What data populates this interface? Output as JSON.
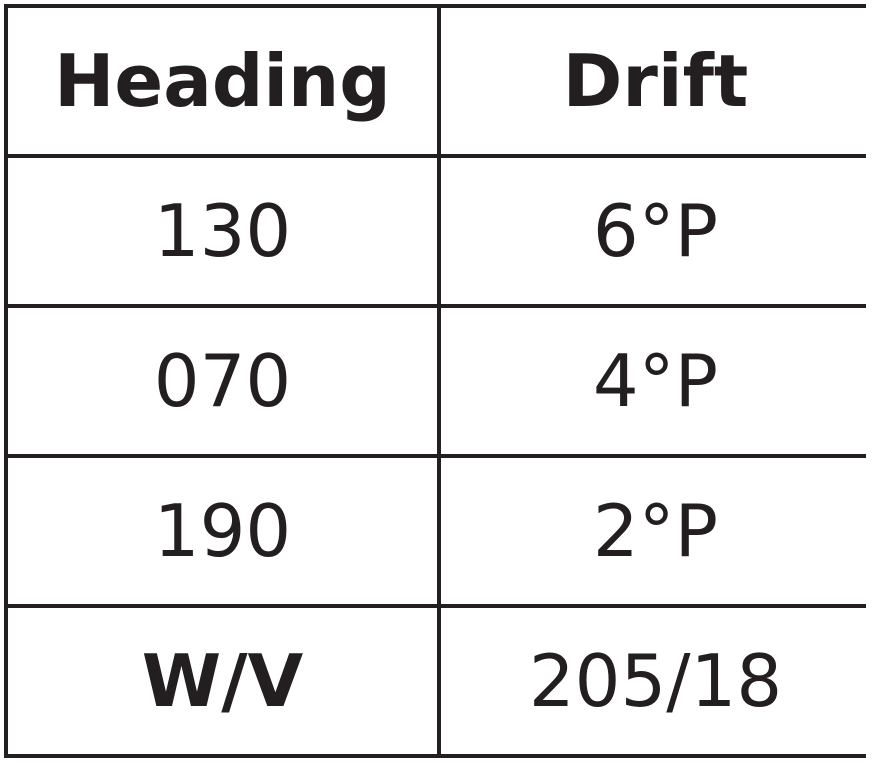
{
  "table": {
    "headers": [
      "Heading",
      "Drift"
    ],
    "rows": [
      [
        "130",
        "6°P"
      ],
      [
        "070",
        "4°P"
      ],
      [
        "190",
        "2°P"
      ]
    ],
    "footer": [
      "W/V",
      "205/18"
    ]
  },
  "colors": {
    "border": "#231f20",
    "text": "#231f20",
    "background": "#ffffff"
  }
}
